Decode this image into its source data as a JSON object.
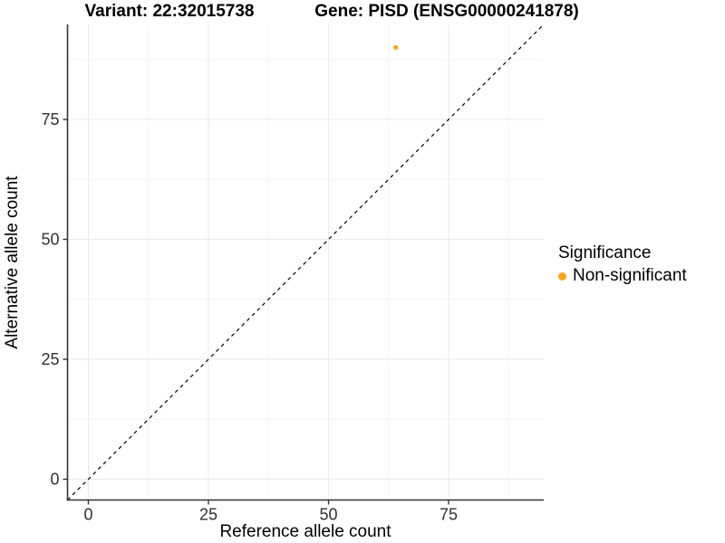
{
  "titles": {
    "variant": "Variant: 22:32015738",
    "gene": "Gene: PISD (ENSG00000241878)"
  },
  "chart_data": {
    "type": "scatter",
    "title_left": "Variant: 22:32015738",
    "title_right": "Gene: PISD (ENSG00000241878)",
    "xlabel": "Reference allele count",
    "ylabel": "Alternative allele count",
    "x_ticks": [
      0,
      25,
      50,
      75
    ],
    "y_ticks": [
      0,
      25,
      50,
      75
    ],
    "x_minor_ticks": [
      12.5,
      37.5,
      62.5,
      87.5
    ],
    "y_minor_ticks": [
      12.5,
      37.5,
      62.5,
      87.5
    ],
    "xlim": [
      -4.34,
      94.8
    ],
    "ylim": [
      -4.34,
      94.8
    ],
    "grid": true,
    "points": [
      {
        "x": 64,
        "y": 90,
        "series": "Non-significant"
      }
    ],
    "reference_line": {
      "slope": 1,
      "intercept": 0,
      "style": "dashed"
    },
    "legend": {
      "title": "Significance",
      "position": "right",
      "entries": [
        {
          "label": "Non-significant",
          "color": "#FFA320"
        }
      ]
    },
    "colors": {
      "point": "#FFA320",
      "grid_major": "#E9E9E9",
      "grid_minor": "#F3F3F3",
      "axis_line": "#333333",
      "tick_label": "#303030",
      "reference_line": "#000000"
    }
  }
}
